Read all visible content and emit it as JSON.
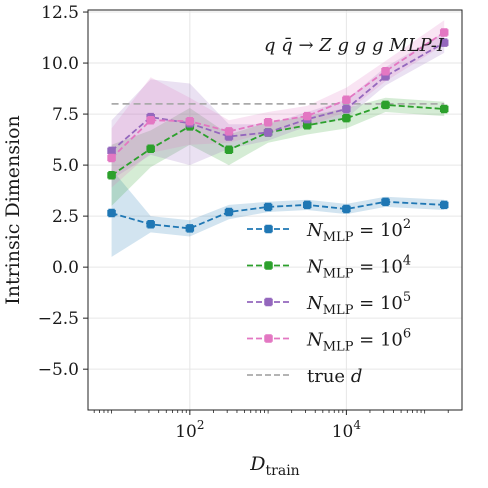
{
  "chart_data": {
    "type": "line",
    "xscale": "log",
    "xlabel": "D",
    "xlabel_sub": "train",
    "ylabel": "Intrinsic Dimension",
    "xlim": [
      5,
      300000
    ],
    "ylim": [
      -7,
      12.6
    ],
    "x_ticks": [
      {
        "value": 100,
        "base": "10",
        "exp": "2"
      },
      {
        "value": 10000,
        "base": "10",
        "exp": "4"
      }
    ],
    "y_ticks": [
      -5.0,
      -2.5,
      0.0,
      2.5,
      5.0,
      7.5,
      10.0,
      12.5
    ],
    "y_tick_labels": [
      "−5.0",
      "−2.5",
      "0.0",
      "2.5",
      "5.0",
      "7.5",
      "10.0",
      "12.5"
    ],
    "grid": true,
    "legend_position": "lower-right",
    "annotation": "q q̄ → Z g g g MLP-I",
    "x": [
      10,
      31.6,
      100,
      316,
      1000,
      3162,
      10000,
      31623,
      177828
    ],
    "series": [
      {
        "name": "N_MLP = 10^2",
        "label_main": "N",
        "label_sub": "MLP",
        "label_rest": " = 10",
        "label_sup": "2",
        "color": "#1f77b4",
        "values": [
          2.65,
          2.1,
          1.9,
          2.7,
          2.95,
          3.05,
          2.85,
          3.2,
          3.05
        ],
        "lower": [
          0.5,
          1.7,
          1.5,
          2.35,
          2.7,
          2.8,
          2.6,
          2.95,
          2.8
        ],
        "upper": [
          4.8,
          2.5,
          2.3,
          3.05,
          3.2,
          3.3,
          3.1,
          3.45,
          3.3
        ]
      },
      {
        "name": "N_MLP = 10^4",
        "label_main": "N",
        "label_sub": "MLP",
        "label_rest": " = 10",
        "label_sup": "4",
        "color": "#2ca02c",
        "values": [
          4.5,
          5.8,
          6.9,
          5.75,
          6.6,
          6.95,
          7.3,
          7.95,
          7.75
        ],
        "lower": [
          3.0,
          4.9,
          6.0,
          5.0,
          6.1,
          6.5,
          6.8,
          7.6,
          7.4
        ],
        "upper": [
          6.0,
          6.7,
          7.8,
          6.5,
          7.1,
          7.4,
          7.8,
          8.3,
          8.1
        ]
      },
      {
        "name": "N_MLP = 10^5",
        "label_main": "N",
        "label_sub": "MLP",
        "label_rest": " = 10",
        "label_sup": "5",
        "color": "#9467bd",
        "values": [
          5.7,
          7.35,
          7.05,
          6.4,
          6.6,
          7.25,
          7.75,
          9.35,
          11.0
        ],
        "lower": [
          4.3,
          5.5,
          5.0,
          5.8,
          6.2,
          6.9,
          7.3,
          8.9,
          10.5
        ],
        "upper": [
          7.2,
          9.2,
          9.0,
          7.0,
          7.0,
          7.6,
          8.2,
          9.8,
          11.5
        ]
      },
      {
        "name": "N_MLP = 10^6",
        "label_main": "N",
        "label_sub": "MLP",
        "label_rest": " = 10",
        "label_sup": "6",
        "color": "#e377c2",
        "values": [
          5.35,
          7.2,
          7.15,
          6.65,
          7.1,
          7.4,
          8.2,
          9.6,
          11.5
        ],
        "lower": [
          3.9,
          5.6,
          6.0,
          6.1,
          6.6,
          6.9,
          7.6,
          9.1,
          10.9
        ],
        "upper": [
          6.8,
          9.3,
          8.3,
          7.2,
          7.6,
          7.9,
          8.8,
          10.1,
          12.1
        ]
      }
    ],
    "reference_line": {
      "name": "true d",
      "label_main": "true ",
      "label_var": "d",
      "value": 8.0,
      "color": "#aaaaaa"
    }
  }
}
